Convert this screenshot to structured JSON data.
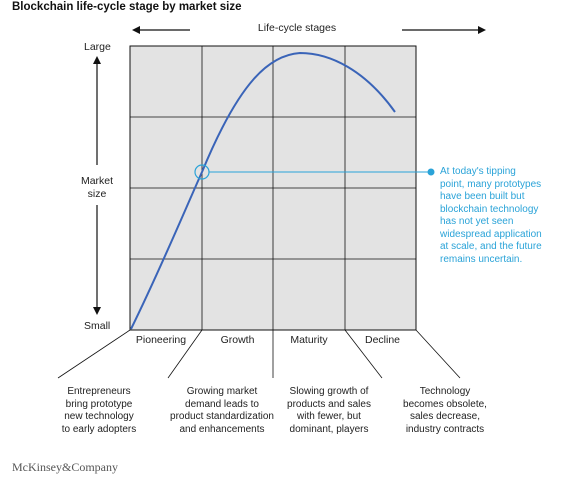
{
  "title": "Blockchain life-cycle stage by market size",
  "header": "Life-cycle stages",
  "y_axis": {
    "top_label": "Large",
    "bottom_label": "Small",
    "label": [
      "Market",
      "size"
    ]
  },
  "stages": [
    {
      "label": "Pioneering",
      "description": [
        "Entrepreneurs",
        "bring prototype",
        "new technology",
        "to early adopters"
      ]
    },
    {
      "label": "Growth",
      "description": [
        "Growing market",
        "demand leads to",
        "product standardization",
        "and enhancements"
      ]
    },
    {
      "label": "Maturity",
      "description": [
        "Slowing growth of",
        "products and sales",
        "with fewer, but",
        "dominant, players"
      ]
    },
    {
      "label": "Decline",
      "description": [
        "Technology",
        "becomes obsolete,",
        "sales decrease,",
        "industry contracts"
      ]
    }
  ],
  "annotation": [
    "At today's tipping",
    "point, many prototypes",
    "have been built but",
    "blockchain technology",
    "has not yet seen",
    "widespread application",
    "at scale, and the future",
    "remains uncertain."
  ],
  "brand": "McKinsey&Company",
  "colors": {
    "curve": "#3a64b8",
    "accent": "#2aa3d8",
    "grid_fill": "#e3e3e3",
    "grid_line": "#111111"
  }
}
